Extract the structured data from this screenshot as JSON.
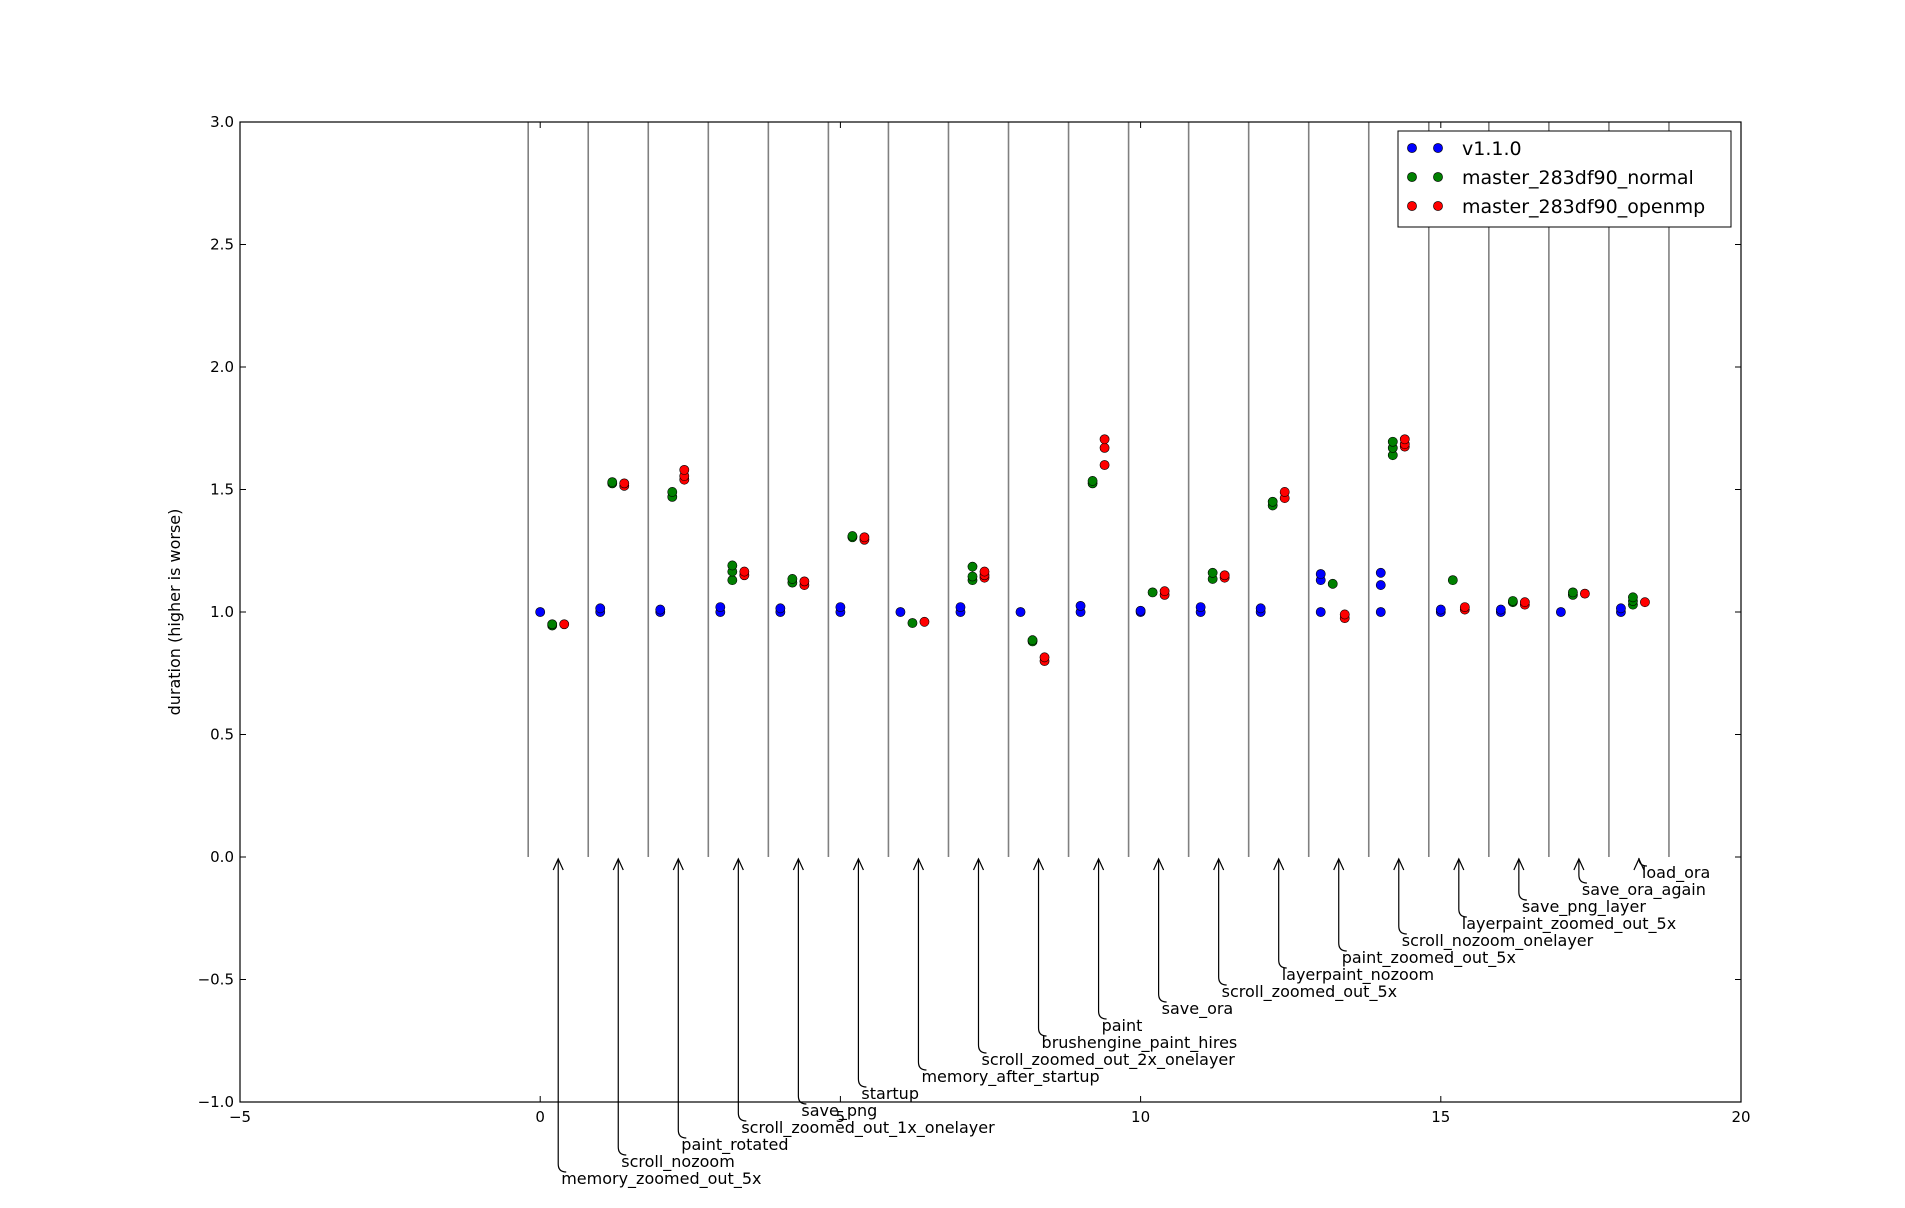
{
  "chart_data": {
    "type": "scatter",
    "title": "",
    "xlabel": "",
    "ylabel": "duration (higher is worse)",
    "xlim": [
      -5,
      20
    ],
    "ylim": [
      -1.0,
      3.0
    ],
    "x_ticks": [
      "−5",
      "0",
      "5",
      "10",
      "15",
      "20"
    ],
    "x_tick_values": [
      -5,
      0,
      5,
      10,
      15,
      20
    ],
    "y_ticks": [
      "−1.0",
      "−0.5",
      "0.0",
      "0.5",
      "1.0",
      "1.5",
      "2.0",
      "2.5",
      "3.0"
    ],
    "y_tick_values": [
      -1.0,
      -0.5,
      0.0,
      0.5,
      1.0,
      1.5,
      2.0,
      2.5,
      3.0
    ],
    "grid": false,
    "legend_position": "top-right",
    "separators": [
      -0.2,
      0.8,
      1.8,
      2.8,
      3.8,
      4.8,
      5.8,
      6.8,
      7.8,
      8.8,
      9.8,
      10.8,
      11.8,
      12.8,
      13.8,
      14.8,
      15.8,
      16.8,
      17.8,
      18.8
    ],
    "annotations": [
      {
        "label": "memory_zoomed_out_5x",
        "x": 0.3
      },
      {
        "label": "scroll_nozoom",
        "x": 1.3
      },
      {
        "label": "paint_rotated",
        "x": 2.3
      },
      {
        "label": "scroll_zoomed_out_1x_onelayer",
        "x": 3.3
      },
      {
        "label": "save_png",
        "x": 4.3
      },
      {
        "label": "startup",
        "x": 5.3
      },
      {
        "label": "memory_after_startup",
        "x": 6.3
      },
      {
        "label": "scroll_zoomed_out_2x_onelayer",
        "x": 7.3
      },
      {
        "label": "brushengine_paint_hires",
        "x": 8.3
      },
      {
        "label": "paint",
        "x": 9.3
      },
      {
        "label": "save_ora",
        "x": 10.3
      },
      {
        "label": "scroll_zoomed_out_5x",
        "x": 11.3
      },
      {
        "label": "layerpaint_nozoom",
        "x": 12.3
      },
      {
        "label": "paint_zoomed_out_5x",
        "x": 13.3
      },
      {
        "label": "scroll_nozoom_onelayer",
        "x": 14.3
      },
      {
        "label": "layerpaint_zoomed_out_5x",
        "x": 15.3
      },
      {
        "label": "save_png_layer",
        "x": 16.3
      },
      {
        "label": "save_ora_again",
        "x": 17.3
      },
      {
        "label": "load_ora",
        "x": 18.3
      }
    ],
    "series": [
      {
        "name": "v1.1.0",
        "color": "#0000ff",
        "points": [
          [
            0,
            1.0
          ],
          [
            1,
            1.0
          ],
          [
            1,
            1.015
          ],
          [
            2,
            1.0
          ],
          [
            2,
            1.01
          ],
          [
            3,
            1.0
          ],
          [
            3,
            1.02
          ],
          [
            4,
            1.0
          ],
          [
            4,
            1.015
          ],
          [
            5,
            1.0
          ],
          [
            5,
            1.02
          ],
          [
            6,
            1.0
          ],
          [
            7,
            1.0
          ],
          [
            7,
            1.02
          ],
          [
            8,
            1.0
          ],
          [
            9,
            1.0
          ],
          [
            9,
            1.025
          ],
          [
            10,
            1.0
          ],
          [
            10,
            1.005
          ],
          [
            11,
            1.0
          ],
          [
            11,
            1.02
          ],
          [
            12,
            1.0
          ],
          [
            12,
            1.015
          ],
          [
            13,
            1.0
          ],
          [
            13,
            1.13
          ],
          [
            13,
            1.155
          ],
          [
            14,
            1.0
          ],
          [
            14,
            1.11
          ],
          [
            14,
            1.16
          ],
          [
            15,
            1.0
          ],
          [
            15,
            1.01
          ],
          [
            16,
            1.0
          ],
          [
            16,
            1.01
          ],
          [
            17,
            1.0
          ],
          [
            18,
            1.0
          ],
          [
            18,
            1.015
          ]
        ]
      },
      {
        "name": "master_283df90_normal",
        "color": "#008000",
        "points": [
          [
            0.2,
            0.945
          ],
          [
            0.2,
            0.95
          ],
          [
            1.2,
            1.525
          ],
          [
            1.2,
            1.53
          ],
          [
            2.2,
            1.47
          ],
          [
            2.2,
            1.49
          ],
          [
            3.2,
            1.13
          ],
          [
            3.2,
            1.165
          ],
          [
            3.2,
            1.19
          ],
          [
            4.2,
            1.12
          ],
          [
            4.2,
            1.135
          ],
          [
            5.2,
            1.305
          ],
          [
            5.2,
            1.31
          ],
          [
            6.2,
            0.955
          ],
          [
            7.2,
            1.13
          ],
          [
            7.2,
            1.145
          ],
          [
            7.2,
            1.185
          ],
          [
            8.2,
            0.88
          ],
          [
            8.2,
            0.885
          ],
          [
            9.2,
            1.525
          ],
          [
            9.2,
            1.535
          ],
          [
            10.2,
            1.08
          ],
          [
            11.2,
            1.135
          ],
          [
            11.2,
            1.16
          ],
          [
            12.2,
            1.435
          ],
          [
            12.2,
            1.45
          ],
          [
            13.2,
            1.115
          ],
          [
            14.2,
            1.64
          ],
          [
            14.2,
            1.67
          ],
          [
            14.2,
            1.695
          ],
          [
            15.2,
            1.13
          ],
          [
            16.2,
            1.04
          ],
          [
            16.2,
            1.045
          ],
          [
            17.2,
            1.07
          ],
          [
            17.2,
            1.08
          ],
          [
            18.2,
            1.03
          ],
          [
            18.2,
            1.045
          ],
          [
            18.2,
            1.06
          ]
        ]
      },
      {
        "name": "master_283df90_openmp",
        "color": "#ff0000",
        "points": [
          [
            0.4,
            0.95
          ],
          [
            1.4,
            1.515
          ],
          [
            1.4,
            1.525
          ],
          [
            2.4,
            1.54
          ],
          [
            2.4,
            1.555
          ],
          [
            2.4,
            1.58
          ],
          [
            3.4,
            1.15
          ],
          [
            3.4,
            1.165
          ],
          [
            4.4,
            1.11
          ],
          [
            4.4,
            1.125
          ],
          [
            5.4,
            1.295
          ],
          [
            5.4,
            1.305
          ],
          [
            6.4,
            0.96
          ],
          [
            7.4,
            1.14
          ],
          [
            7.4,
            1.15
          ],
          [
            7.4,
            1.165
          ],
          [
            8.4,
            0.8
          ],
          [
            8.4,
            0.815
          ],
          [
            9.4,
            1.6
          ],
          [
            9.4,
            1.67
          ],
          [
            9.4,
            1.705
          ],
          [
            10.4,
            1.07
          ],
          [
            10.4,
            1.085
          ],
          [
            11.4,
            1.14
          ],
          [
            11.4,
            1.15
          ],
          [
            12.4,
            1.465
          ],
          [
            12.4,
            1.49
          ],
          [
            13.4,
            0.975
          ],
          [
            13.4,
            0.99
          ],
          [
            14.4,
            1.675
          ],
          [
            14.4,
            1.685
          ],
          [
            14.4,
            1.705
          ],
          [
            15.4,
            1.01
          ],
          [
            15.4,
            1.02
          ],
          [
            16.4,
            1.03
          ],
          [
            16.4,
            1.04
          ],
          [
            17.4,
            1.075
          ],
          [
            18.4,
            1.04
          ]
        ]
      }
    ]
  }
}
